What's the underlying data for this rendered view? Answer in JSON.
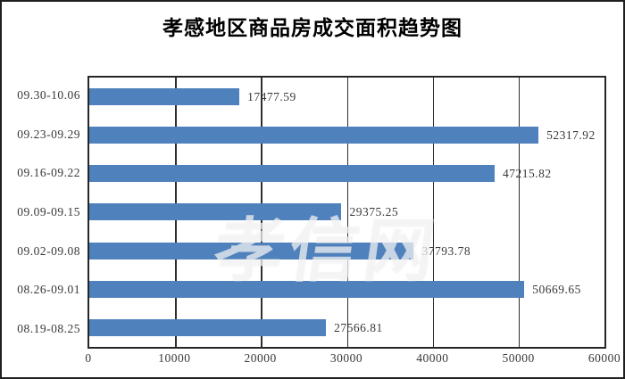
{
  "page_title": "孝感地区商品房成交面积趋势图",
  "watermark": {
    "text": "孝信网"
  },
  "colors": {
    "bar": "#4F81BD",
    "plot_border": "#262626",
    "gridline": "#2E2E2E",
    "label_text": "#383838",
    "background": "#FFFFFF"
  },
  "chart_data": {
    "type": "bar",
    "orientation": "horizontal",
    "title": "孝感地区商品房成交面积趋势图",
    "categories": [
      "09.30-10.06",
      "09.23-09.29",
      "09.16-09.22",
      "09.09-09.15",
      "09.02-09.08",
      "08.26-09.01",
      "08.19-08.25"
    ],
    "values": [
      17477.59,
      52317.92,
      47215.82,
      29375.25,
      37793.78,
      50669.65,
      27566.81
    ],
    "value_labels": [
      "17477.59",
      "52317.92",
      "47215.82",
      "29375.25",
      "37793.78",
      "50669.65",
      "27566.81"
    ],
    "xlabel": "",
    "ylabel": "",
    "xlim": [
      0,
      60000
    ],
    "xticks": [
      0,
      10000,
      20000,
      30000,
      40000,
      50000,
      60000
    ],
    "xtick_labels": [
      "0",
      "10000",
      "20000",
      "30000",
      "40000",
      "50000",
      "60000"
    ],
    "grid": "vertical",
    "legend_position": "none",
    "bar_color": "#4F81BD"
  }
}
